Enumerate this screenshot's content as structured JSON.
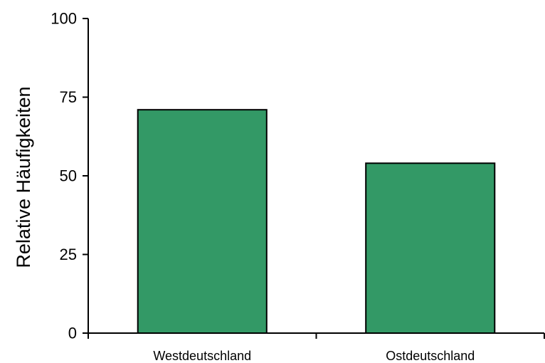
{
  "chart_data": {
    "type": "bar",
    "title": "",
    "xlabel": "",
    "ylabel": "Relative Häufigkeiten",
    "categories": [
      "Westdeutschland",
      "Ostdeutschland"
    ],
    "values": [
      71,
      54
    ],
    "ylim": [
      0,
      100
    ],
    "yticks": [
      0,
      25,
      50,
      75,
      100
    ],
    "grid": false,
    "bar_color": "#339966"
  }
}
